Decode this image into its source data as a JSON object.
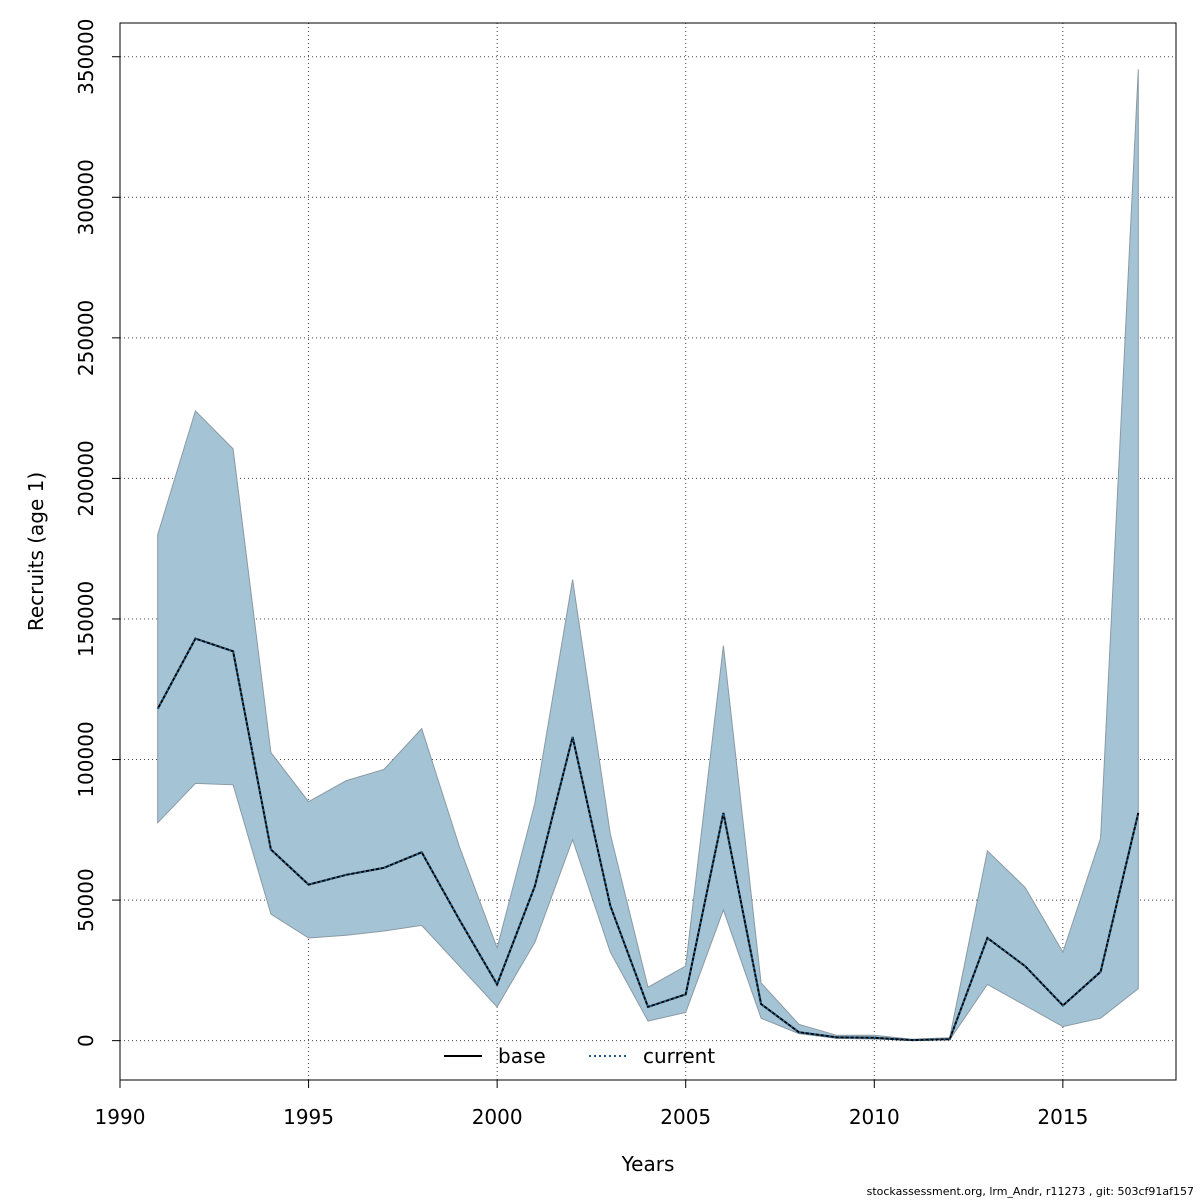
{
  "chart_data": {
    "type": "area",
    "xlabel": "Years",
    "ylabel": "Recruits (age 1)",
    "xlim": [
      1990,
      2018
    ],
    "ylim": [
      -14000,
      362000
    ],
    "x_ticks": [
      1990,
      1995,
      2000,
      2005,
      2010,
      2015
    ],
    "y_ticks": [
      0,
      50000,
      100000,
      150000,
      200000,
      250000,
      300000,
      350000
    ],
    "grid": true,
    "legend_position": "bottom-center",
    "x": [
      1991,
      1992,
      1993,
      1994,
      1995,
      1996,
      1997,
      1998,
      1999,
      2000,
      2001,
      2002,
      2003,
      2004,
      2005,
      2006,
      2007,
      2008,
      2009,
      2010,
      2011,
      2012,
      2013,
      2014,
      2015,
      2016,
      2017
    ],
    "series": [
      {
        "name": "base",
        "style": "solid",
        "color": "#000000",
        "values": [
          118000,
          143000,
          138500,
          68000,
          55500,
          59000,
          61500,
          67000,
          43000,
          20000,
          55000,
          108000,
          48000,
          12000,
          16500,
          81000,
          13000,
          3000,
          1200,
          1000,
          200,
          500,
          36500,
          26500,
          12500,
          24500,
          81000
        ]
      },
      {
        "name": "current",
        "style": "dotted",
        "color": "#1f5f8f",
        "values": [
          118000,
          143000,
          138500,
          68000,
          55500,
          59000,
          61500,
          67000,
          43000,
          20000,
          55000,
          108000,
          48000,
          12000,
          16500,
          81000,
          13000,
          3000,
          1200,
          1000,
          200,
          500,
          36500,
          26500,
          12500,
          24500,
          81000
        ]
      }
    ],
    "confidence_band": {
      "color": "#a4c3d4",
      "upper": [
        180000,
        224000,
        210500,
        102500,
        85000,
        92500,
        96500,
        111000,
        69000,
        33000,
        84500,
        164000,
        73500,
        19000,
        26500,
        140500,
        20500,
        5800,
        1900,
        1900,
        500,
        1000,
        67500,
        54500,
        31500,
        72000,
        345500
      ],
      "lower": [
        77500,
        91500,
        91000,
        45000,
        36500,
        37500,
        39000,
        41000,
        26500,
        12000,
        35000,
        71500,
        31500,
        7000,
        10000,
        46500,
        8000,
        2500,
        800,
        600,
        100,
        300,
        20000,
        12500,
        5000,
        8000,
        18500
      ]
    }
  },
  "footer": "stockassessment.org, lrm_Andr, r11273 , git: 503cf91af157"
}
